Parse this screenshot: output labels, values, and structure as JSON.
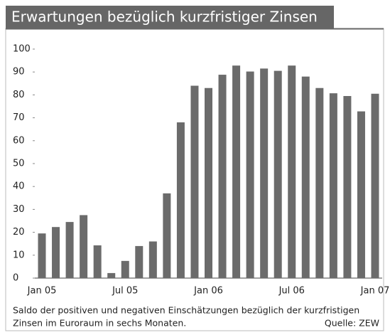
{
  "chart_data": {
    "type": "bar",
    "title": "Erwartungen bezüglich kurzfristiger Zinsen",
    "categories": [
      "Jan 05",
      null,
      null,
      null,
      null,
      null,
      "Jul 05",
      null,
      null,
      null,
      null,
      null,
      "Jan 06",
      null,
      null,
      null,
      null,
      null,
      "Jul 06",
      null,
      null,
      null,
      null,
      null,
      "Jan 07"
    ],
    "values": [
      19.5,
      22.3,
      24.5,
      27.5,
      14.3,
      2.2,
      7.5,
      14,
      16,
      37,
      68,
      84,
      83,
      88.8,
      92.8,
      90.2,
      91.5,
      90.5,
      92.8,
      88,
      83,
      80.7,
      79.5,
      72.8,
      80.5
    ],
    "color": "#6b6b6b",
    "ylim": [
      0,
      100
    ],
    "yticks": [
      0,
      10,
      20,
      30,
      40,
      50,
      60,
      70,
      80,
      90,
      100
    ],
    "grid": false,
    "caption": [
      "Saldo der positiven und negativen Einschätzungen bezüglich der kurzfristigen",
      "Zinsen im Euroraum in sechs Monaten."
    ],
    "source": "Quelle: ZEW"
  }
}
